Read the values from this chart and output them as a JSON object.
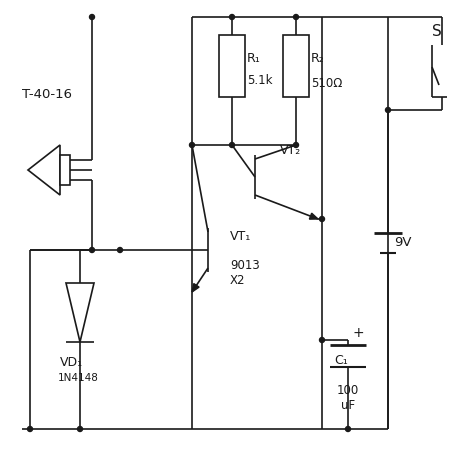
{
  "bg": "#ffffff",
  "lc": "#1a1a1a",
  "lw": 1.2,
  "labels": {
    "sensor": "T-40-16",
    "R1": "R₁",
    "R1v": "5.1k",
    "R2": "R₂",
    "R2v": "510Ω",
    "VT1": "VT₁",
    "VT2": "VT₂",
    "VD1": "VD₁",
    "VD1v": "1N4148",
    "Qval": "9013\nX2",
    "C1": "C₁",
    "C1v": "100\nuF",
    "S": "S",
    "bat": "9V"
  }
}
